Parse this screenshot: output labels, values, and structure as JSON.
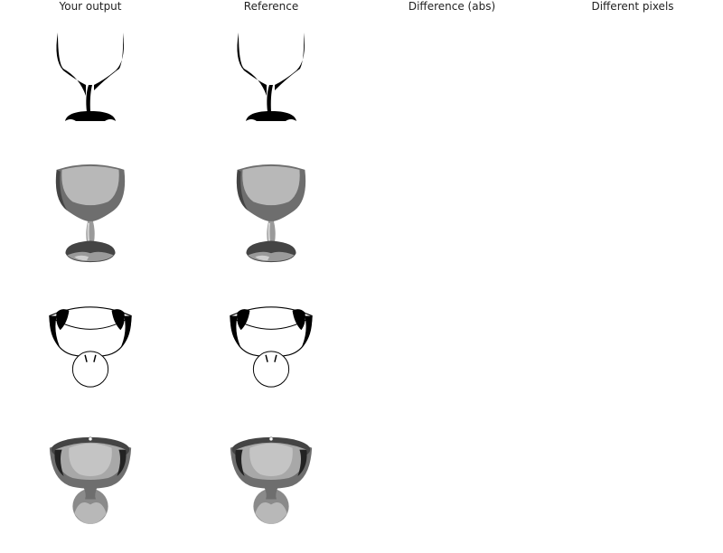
{
  "columns": [
    {
      "id": "output",
      "label": "Your output"
    },
    {
      "id": "reference",
      "label": "Reference"
    },
    {
      "id": "difference",
      "label": "Difference (abs)"
    },
    {
      "id": "pixels",
      "label": "Different pixels"
    }
  ],
  "rows": [
    {
      "id": "silhouette",
      "style": "silhouette"
    },
    {
      "id": "shaded-side",
      "style": "shaded-side"
    },
    {
      "id": "outline-top",
      "style": "outline-top"
    },
    {
      "id": "shaded-top",
      "style": "shaded-top"
    }
  ],
  "colors": {
    "background": "#ffffff",
    "ink": "#000000",
    "dark": "#555555",
    "mid": "#888888",
    "light": "#b8b8b8",
    "pale": "#d6d6d6"
  }
}
